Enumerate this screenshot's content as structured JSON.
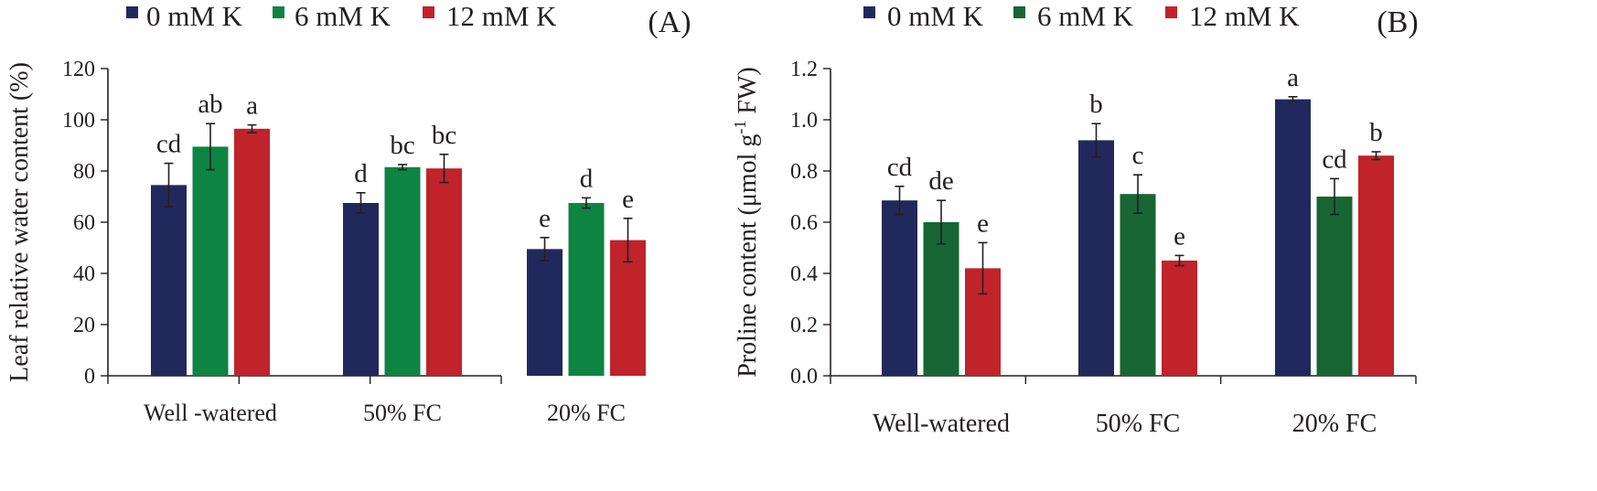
{
  "chart_data": [
    {
      "type": "bar",
      "panel_label": "(A)",
      "ylabel": "Leaf relative water content (%)",
      "ylim": [
        0,
        120
      ],
      "yticks": [
        "0",
        "20",
        "40",
        "60",
        "80",
        "100",
        "120"
      ],
      "categories": [
        "Well -watered",
        "50% FC",
        "20% FC"
      ],
      "series": [
        {
          "name": "0 mM K",
          "color": "#21295c",
          "values": [
            74.5,
            67.5,
            49.5
          ],
          "errors": [
            8.5,
            4.0,
            4.5
          ],
          "letters": [
            "cd",
            "d",
            "e"
          ]
        },
        {
          "name": "6 mM K",
          "color": "#0e8442",
          "values": [
            89.5,
            81.5,
            67.5
          ],
          "errors": [
            9.0,
            1.0,
            2.0
          ],
          "letters": [
            "ab",
            "bc",
            "d"
          ]
        },
        {
          "name": "12 mM K",
          "color": "#c0232a",
          "values": [
            96.5,
            81.0,
            53.0
          ],
          "errors": [
            1.5,
            5.5,
            8.5
          ],
          "letters": [
            "a",
            "bc",
            "e"
          ]
        }
      ]
    },
    {
      "type": "bar",
      "panel_label": "(B)",
      "ylabel_main": "Proline content (μmol g",
      "ylabel_sup": "-1",
      "ylabel_end": " FW)",
      "ylim": [
        0,
        1.2
      ],
      "yticks": [
        "0.0",
        "0.2",
        "0.4",
        "0.6",
        "0.8",
        "1.0",
        "1.2"
      ],
      "categories": [
        "Well-watered",
        "50% FC",
        "20% FC"
      ],
      "series": [
        {
          "name": "0 mM K",
          "color": "#21295c",
          "values": [
            0.685,
            0.92,
            1.08
          ],
          "errors": [
            0.055,
            0.065,
            0.01
          ],
          "letters": [
            "cd",
            "b",
            "a"
          ]
        },
        {
          "name": "6 mM K",
          "color": "#176633",
          "values": [
            0.6,
            0.71,
            0.7
          ],
          "errors": [
            0.085,
            0.075,
            0.07
          ],
          "letters": [
            "de",
            "c",
            "cd"
          ]
        },
        {
          "name": "12 mM K",
          "color": "#c0232a",
          "values": [
            0.42,
            0.45,
            0.86
          ],
          "errors": [
            0.1,
            0.02,
            0.015
          ],
          "letters": [
            "e",
            "e",
            "b"
          ]
        }
      ]
    }
  ]
}
